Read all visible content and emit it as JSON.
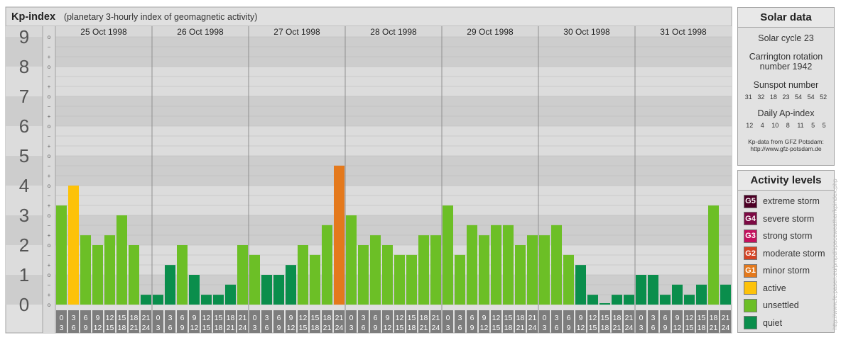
{
  "header": {
    "title": "Kp-index",
    "subtitle": "(planetary 3-hourly index of geomagnetic activity)"
  },
  "chart_data": {
    "type": "bar",
    "ylim": [
      0,
      9
    ],
    "y_ticks": [
      "0",
      "1",
      "2",
      "3",
      "4",
      "5",
      "6",
      "7",
      "8",
      "9"
    ],
    "sub_tick_labels": [
      "o",
      "+",
      "−",
      "o"
    ],
    "days": [
      "25 Oct 1998",
      "26 Oct 1998",
      "27 Oct 1998",
      "28 Oct 1998",
      "29 Oct 1998",
      "30 Oct 1998",
      "31 Oct 1998"
    ],
    "slot_top_labels": [
      "0",
      "3",
      "6",
      "9",
      "12",
      "15",
      "18",
      "21"
    ],
    "slot_bottom_labels": [
      "3",
      "6",
      "9",
      "12",
      "15",
      "18",
      "21",
      "24"
    ],
    "values": [
      [
        3.33,
        4.0,
        2.33,
        2.0,
        2.33,
        3.0,
        2.0,
        0.33
      ],
      [
        0.33,
        1.33,
        2.0,
        1.0,
        0.33,
        0.33,
        0.67,
        2.0
      ],
      [
        1.67,
        1.0,
        1.0,
        1.33,
        2.0,
        1.67,
        2.67,
        4.67
      ],
      [
        3.0,
        2.0,
        2.33,
        2.0,
        1.67,
        1.67,
        2.33,
        2.33
      ],
      [
        3.33,
        1.67,
        2.67,
        2.33,
        2.67,
        2.67,
        2.0,
        2.33
      ],
      [
        2.33,
        2.67,
        1.67,
        1.33,
        0.33,
        0.0,
        0.33,
        0.33
      ],
      [
        1.0,
        1.0,
        0.33,
        0.67,
        0.33,
        0.67,
        3.33,
        0.67
      ]
    ],
    "colors": {
      "quiet": "#0a8e4c",
      "unsettled": "#6cbf26",
      "active": "#fdc209",
      "G1": "#e4791c",
      "G2": "#d54324",
      "G3": "#c4115e",
      "G4": "#7d0a44",
      "G5": "#4d0026"
    }
  },
  "solar_data": {
    "title": "Solar data",
    "cycle": "Solar cycle 23",
    "carrington_line1": "Carrington rotation",
    "carrington_line2": "number 1942",
    "sunspot_label": "Sunspot number",
    "sunspot_values": [
      "31",
      "32",
      "18",
      "23",
      "54",
      "54",
      "52"
    ],
    "ap_label": "Daily Ap-index",
    "ap_values": [
      "12",
      "4",
      "10",
      "8",
      "11",
      "5",
      "5"
    ],
    "credit_line1": "Kp-data from GFZ Potsdam:",
    "credit_line2": "http://www.gfz-potsdam.de"
  },
  "activity_levels": {
    "title": "Activity levels",
    "items": [
      {
        "badge": "G5",
        "label": "extreme storm",
        "color": "#4d0026"
      },
      {
        "badge": "G4",
        "label": "severe storm",
        "color": "#7d0a44"
      },
      {
        "badge": "G3",
        "label": "strong storm",
        "color": "#c4115e"
      },
      {
        "badge": "G2",
        "label": "moderate storm",
        "color": "#d54324"
      },
      {
        "badge": "G1",
        "label": "minor storm",
        "color": "#e4791c"
      },
      {
        "badge": "",
        "label": "active",
        "color": "#fdc209"
      },
      {
        "badge": "",
        "label": "unsettled",
        "color": "#6cbf26"
      },
      {
        "badge": "",
        "label": "quiet",
        "color": "#0a8e4c"
      }
    ]
  },
  "side_credit": "http://www.fe.pasen.eu/pmpd/spaceweather/kpindex.php"
}
